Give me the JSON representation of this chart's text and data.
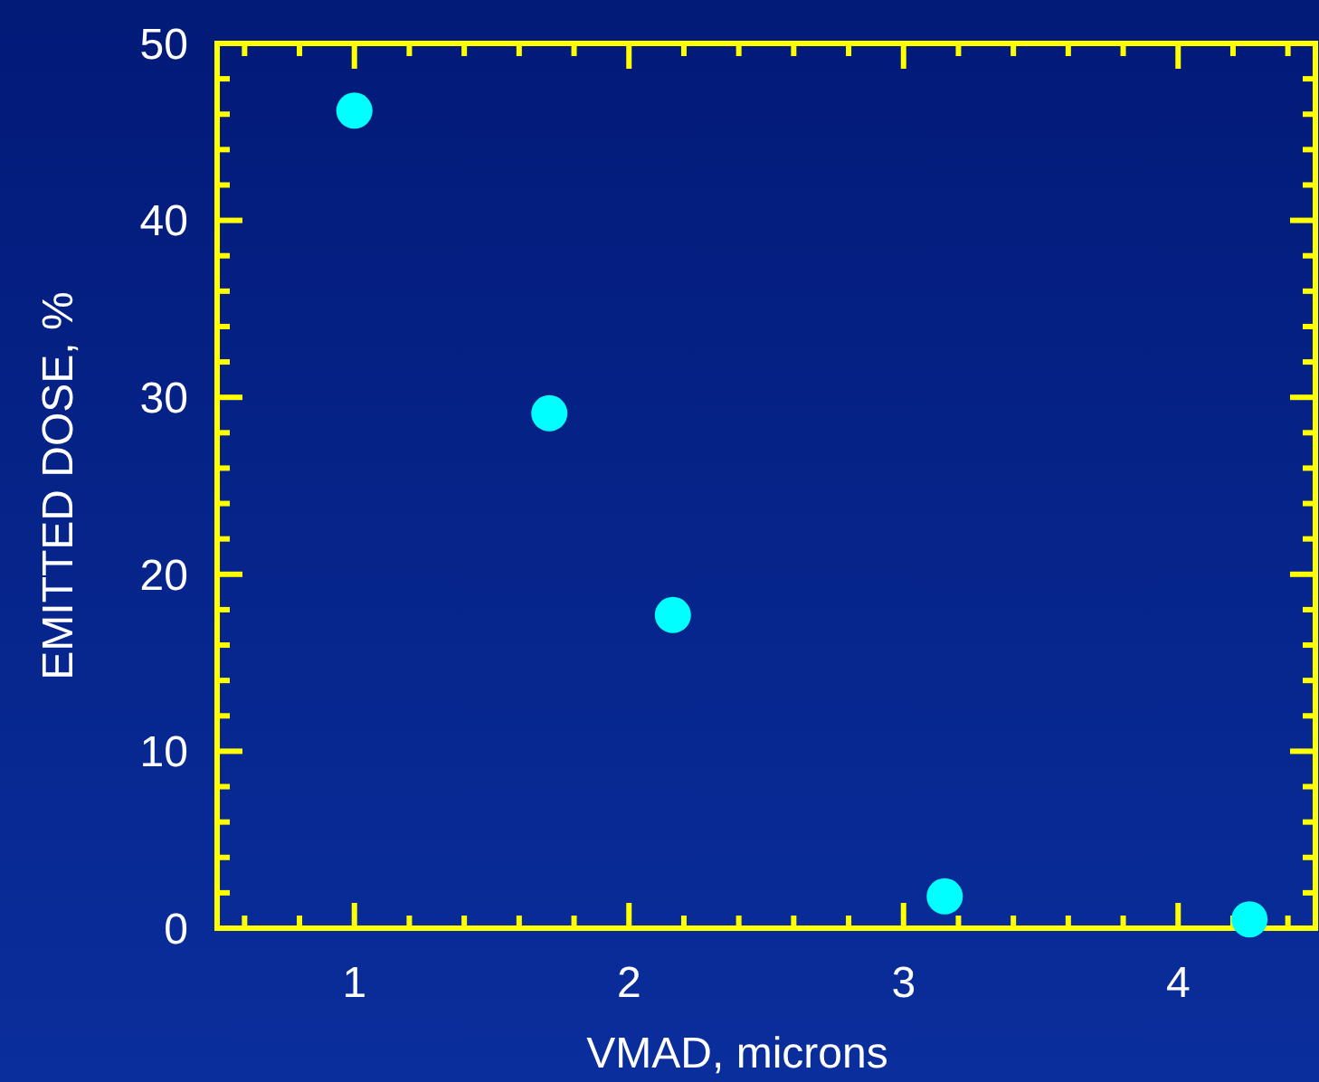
{
  "chart_data": {
    "type": "scatter",
    "xlabel": "VMAD, microns",
    "ylabel": "EMITTED DOSE, %",
    "x": [
      1.0,
      1.71,
      2.16,
      3.15,
      4.26
    ],
    "series": [
      {
        "color": "#00ffff",
        "values": [
          46.2,
          29.1,
          17.7,
          1.8,
          0.5
        ]
      }
    ],
    "marker": "circle",
    "grid": false,
    "xlim": [
      0.5,
      4.5
    ],
    "xticks": [
      {
        "value": 0.6,
        "label": null
      },
      {
        "value": 0.8,
        "label": null
      },
      1,
      {
        "value": 1.2,
        "label": null
      },
      {
        "value": 1.4,
        "label": null
      },
      {
        "value": 1.6,
        "label": null
      },
      {
        "value": 1.8,
        "label": null
      },
      2,
      {
        "value": 2.2,
        "label": null
      },
      {
        "value": 2.4,
        "label": null
      },
      {
        "value": 2.6,
        "label": null
      },
      {
        "value": 2.8,
        "label": null
      },
      3,
      {
        "value": 3.2,
        "label": null
      },
      {
        "value": 3.4,
        "label": null
      },
      {
        "value": 3.6,
        "label": null
      },
      {
        "value": 3.8,
        "label": null
      },
      4,
      {
        "value": 4.2,
        "label": null
      },
      {
        "value": 4.4,
        "label": null
      }
    ],
    "ylim": [
      0,
      50
    ],
    "yticks": [
      0,
      {
        "value": 2,
        "label": null
      },
      {
        "value": 4,
        "label": null
      },
      {
        "value": 6,
        "label": null
      },
      {
        "value": 8,
        "label": null
      },
      10,
      {
        "value": 12,
        "label": null
      },
      {
        "value": 14,
        "label": null
      },
      {
        "value": 16,
        "label": null
      },
      {
        "value": 18,
        "label": null
      },
      20,
      {
        "value": 22,
        "label": null
      },
      {
        "value": 24,
        "label": null
      },
      {
        "value": 26,
        "label": null
      },
      {
        "value": 28,
        "label": null
      },
      30,
      {
        "value": 32,
        "label": null
      },
      {
        "value": 34,
        "label": null
      },
      {
        "value": 36,
        "label": null
      },
      {
        "value": 38,
        "label": null
      },
      40,
      {
        "value": 42,
        "label": null
      },
      {
        "value": 44,
        "label": null
      },
      {
        "value": 46,
        "label": null
      },
      {
        "value": 48,
        "label": null
      },
      50
    ]
  }
}
